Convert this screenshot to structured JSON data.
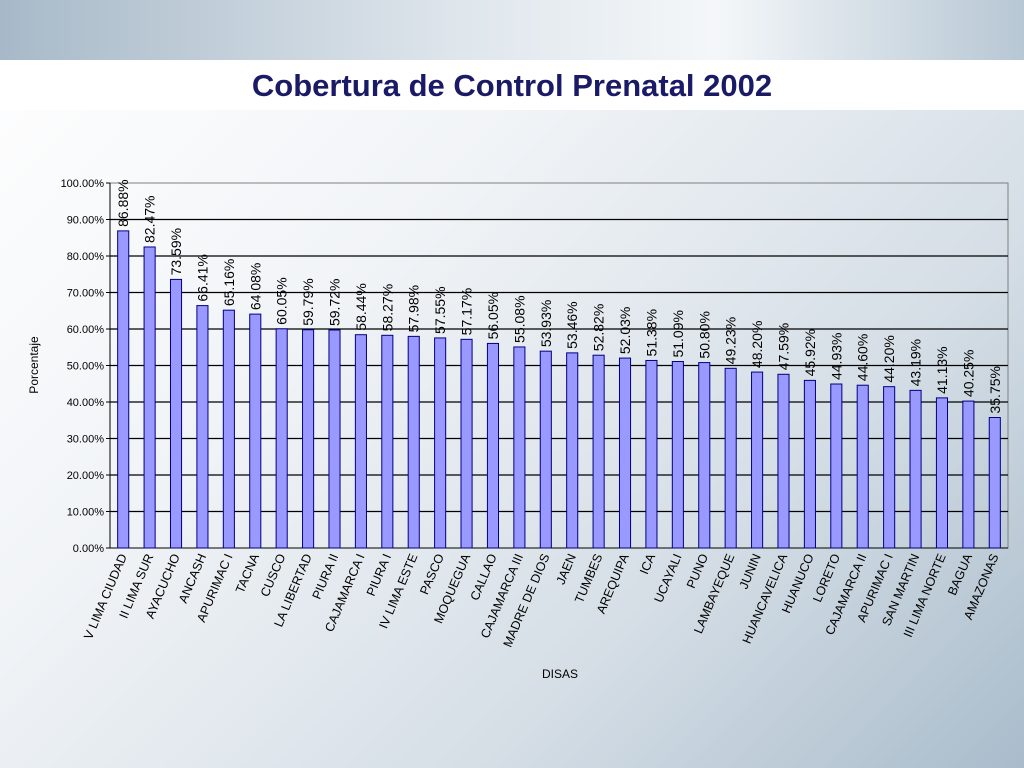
{
  "slide": {
    "title": "Cobertura de Control Prenatal 2002"
  },
  "colors": {
    "bar_fill": "#9999ff",
    "bar_stroke": "#000080",
    "title_color": "#1a1a66"
  },
  "chart_data": {
    "type": "bar",
    "title": "Cobertura de Control Prenatal 2002",
    "xlabel": "DISAS",
    "ylabel": "Porcentaje",
    "ylim": [
      0,
      100
    ],
    "yticks": [
      "0.00%",
      "10.00%",
      "20.00%",
      "30.00%",
      "40.00%",
      "50.00%",
      "60.00%",
      "70.00%",
      "80.00%",
      "90.00%",
      "100.00%"
    ],
    "grid": true,
    "legend": "none",
    "categories": [
      "V LIMA CIUDAD",
      "II LIMA SUR",
      "AYACUCHO",
      "ANCASH",
      "APURIMAC I",
      "TACNA",
      "CUSCO",
      "LA LIBERTAD",
      "PIURA II",
      "CAJAMARCA I",
      "PIURA I",
      "IV LIMA ESTE",
      "PASCO",
      "MOQUEGUA",
      "CALLAO",
      "CAJAMARCA III",
      "MADRE DE DIOS",
      "JAEN",
      "TUMBES",
      "AREQUIPA",
      "ICA",
      "UCAYALI",
      "PUNO",
      "LAMBAYEQUE",
      "JUNIN",
      "HUANCAVELICA",
      "HUANUCO",
      "LORETO",
      "CAJAMARCA II",
      "APURIMAC I",
      "SAN MARTIN",
      "III LIMA NORTE",
      "BAGUA",
      "AMAZONAS"
    ],
    "values": [
      86.88,
      82.47,
      73.59,
      66.41,
      65.16,
      64.08,
      60.05,
      59.79,
      59.72,
      58.44,
      58.27,
      57.98,
      57.55,
      57.17,
      56.05,
      55.08,
      53.93,
      53.46,
      52.82,
      52.03,
      51.38,
      51.09,
      50.8,
      49.23,
      48.2,
      47.59,
      45.92,
      44.93,
      44.6,
      44.2,
      43.19,
      41.13,
      40.25,
      35.75
    ],
    "data_labels": [
      "86.88%",
      "82.47%",
      "73.59%",
      "66.41%",
      "65.16%",
      "64.08%",
      "60.05%",
      "59.79%",
      "59.72%",
      "58.44%",
      "58.27%",
      "57.98%",
      "57.55%",
      "57.17%",
      "56.05%",
      "55.08%",
      "53.93%",
      "53.46%",
      "52.82%",
      "52.03%",
      "51.38%",
      "51.09%",
      "50.80%",
      "49.23%",
      "48.20%",
      "47.59%",
      "45.92%",
      "44.93%",
      "44.60%",
      "44.20%",
      "43.19%",
      "41.13%",
      "40.25%",
      "35.75%"
    ]
  }
}
